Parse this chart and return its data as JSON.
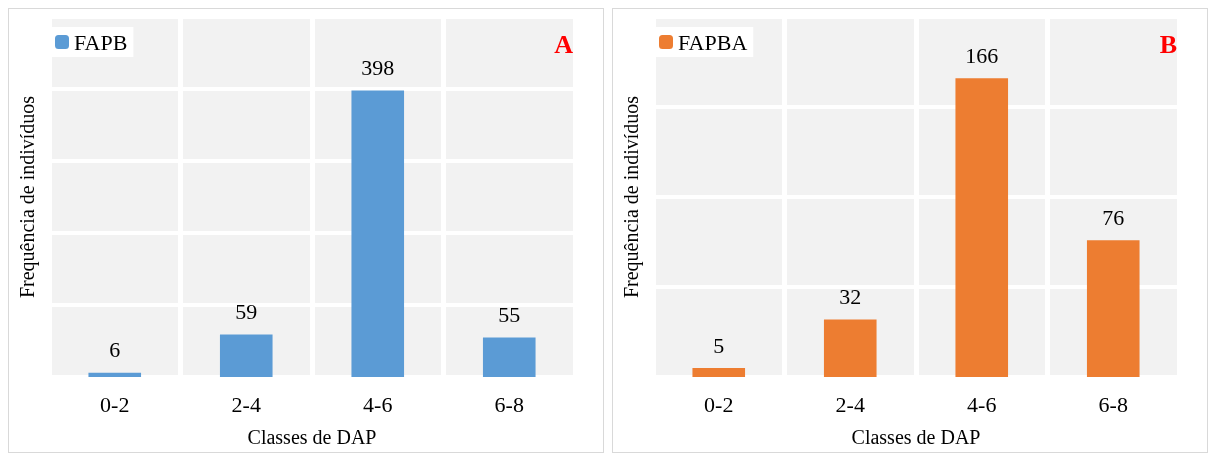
{
  "chart_data": [
    {
      "type": "bar",
      "categories": [
        "0-2",
        "2-4",
        "4-6",
        "6-8"
      ],
      "series": [
        {
          "name": "FAPB",
          "color": "#5b9bd5",
          "values": [
            6,
            59,
            398,
            55
          ]
        }
      ],
      "xlabel": "Classes de DAP",
      "ylabel": "Frequência de indivíduos",
      "ylim": [
        0,
        500
      ],
      "yticks": [
        {
          "value": 0,
          "label": null
        },
        {
          "value": 100,
          "label": null
        },
        {
          "value": 200,
          "label": null
        },
        {
          "value": 300,
          "label": null
        },
        {
          "value": 400,
          "label": null
        },
        {
          "value": 500,
          "label": null
        }
      ],
      "data_labels": true,
      "legend": "top left",
      "grid": true,
      "tick_labels": "x",
      "annotations": [
        "A"
      ]
    },
    {
      "type": "bar",
      "categories": [
        "0-2",
        "2-4",
        "4-6",
        "6-8"
      ],
      "series": [
        {
          "name": "FAPBA",
          "color": "#ed7d31",
          "values": [
            5,
            32,
            166,
            76
          ]
        }
      ],
      "xlabel": "Classes de DAP",
      "ylabel": "Frequência de indivíduos",
      "ylim": [
        0,
        200
      ],
      "yticks": [
        {
          "value": 0,
          "label": null
        },
        {
          "value": 50,
          "label": null
        },
        {
          "value": 100,
          "label": null
        },
        {
          "value": 150,
          "label": null
        },
        {
          "value": 200,
          "label": null
        }
      ],
      "data_labels": true,
      "legend": "top left",
      "grid": true,
      "tick_labels": "x",
      "annotations": [
        "B"
      ]
    }
  ]
}
